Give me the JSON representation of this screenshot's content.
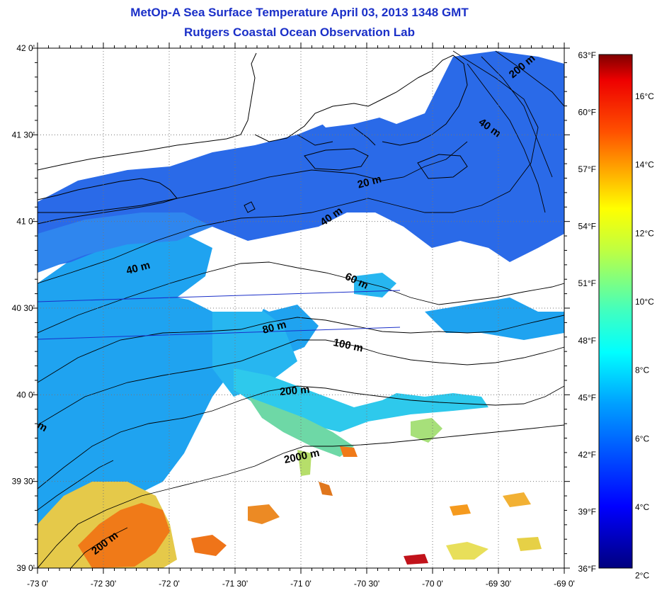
{
  "header": {
    "title": "MetOp-A Sea Surface Temperature April 03, 2013 1348 GMT",
    "subtitle": "Rutgers Coastal Ocean Observation Lab"
  },
  "map": {
    "lat_labels": [
      {
        "lat": 42.0,
        "label": "42 0'"
      },
      {
        "lat": 41.5,
        "label": "41 30'"
      },
      {
        "lat": 41.0,
        "label": "41 0'"
      },
      {
        "lat": 40.5,
        "label": "40 30'"
      },
      {
        "lat": 40.0,
        "label": "40 0'"
      },
      {
        "lat": 39.5,
        "label": "39 30'"
      },
      {
        "lat": 39.0,
        "label": "39 0'"
      }
    ],
    "lon_labels": [
      {
        "lon": -73.0,
        "label": "-73 0'"
      },
      {
        "lon": -72.5,
        "label": "-72 30'"
      },
      {
        "lon": -72.0,
        "label": "-72 0'"
      },
      {
        "lon": -71.5,
        "label": "-71 30'"
      },
      {
        "lon": -71.0,
        "label": "-71 0'"
      },
      {
        "lon": -70.5,
        "label": "-70 30'"
      },
      {
        "lon": -70.0,
        "label": "-70 0'"
      },
      {
        "lon": -69.5,
        "label": "-69 30'"
      },
      {
        "lon": -69.0,
        "label": "-69 0'"
      }
    ],
    "isobath_labels": [
      "20 m",
      "40 m",
      "40 m",
      "40 m",
      "60 m",
      "80 m",
      "100 m",
      "200 m",
      "200 m",
      "200 m",
      "2000 m",
      "m"
    ],
    "colors": {
      "land_outline": "#000000",
      "grid": "#666666",
      "cold_water": "#2a6ae8",
      "cool_water": "#1fa3f0",
      "mid_water": "#2ec9ec",
      "warm_water": "#a7e07a",
      "hot_water": "#f07a18"
    }
  },
  "colorbar": {
    "fahrenheit_labels": [
      "63°F",
      "60°F",
      "57°F",
      "54°F",
      "51°F",
      "48°F",
      "45°F",
      "42°F",
      "39°F",
      "36°F"
    ],
    "celsius_labels": [
      "16°C",
      "14°C",
      "12°C",
      "10°C",
      "8°C",
      "6°C",
      "4°C",
      "2°C"
    ],
    "f_min": 36,
    "f_max": 63,
    "c_values": [
      16,
      14,
      12,
      10,
      8,
      6,
      4,
      2
    ]
  }
}
